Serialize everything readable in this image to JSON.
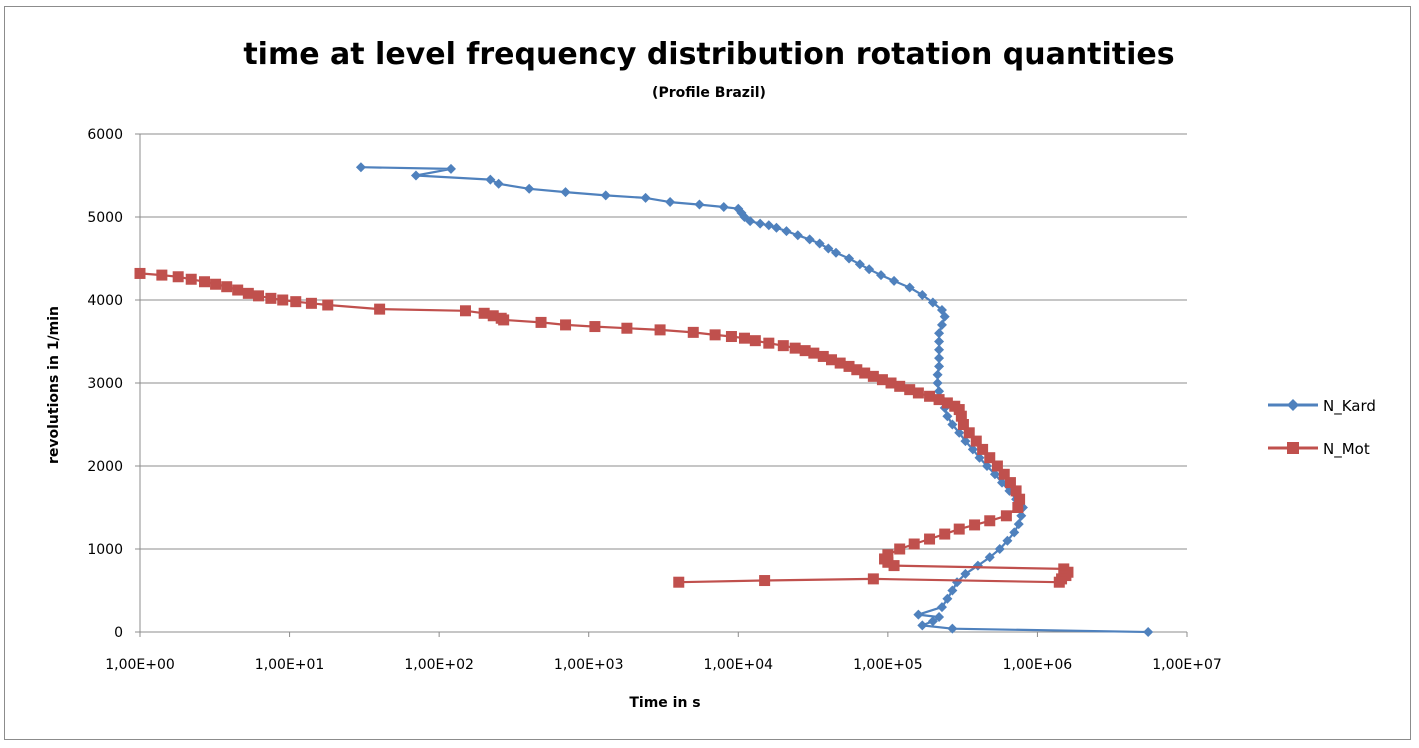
{
  "chart_data": {
    "type": "line",
    "title": "time at level frequency distribution rotation quantities",
    "subtitle": "(Profile Brazil)",
    "xlabel": "Time in s",
    "ylabel": "revolutions in 1/min",
    "x_scale": "log",
    "xlim": [
      1,
      10000000
    ],
    "ylim": [
      0,
      6000
    ],
    "x_ticks": [
      1,
      10,
      100,
      1000,
      10000,
      100000,
      1000000,
      10000000
    ],
    "x_tick_labels": [
      "1,00E+00",
      "1,00E+01",
      "1,00E+02",
      "1,00E+03",
      "1,00E+04",
      "1,00E+05",
      "1,00E+06",
      "1,00E+07"
    ],
    "y_ticks": [
      0,
      1000,
      2000,
      3000,
      4000,
      5000,
      6000
    ],
    "y_tick_labels": [
      "0",
      "1000",
      "2000",
      "3000",
      "4000",
      "5000",
      "6000"
    ],
    "grid": "horizontal",
    "legend_position": "right",
    "series": [
      {
        "name": "N_Kard",
        "color": "#4f81bd",
        "marker": "diamond",
        "points": [
          [
            30,
            5600
          ],
          [
            120,
            5580
          ],
          [
            70,
            5500
          ],
          [
            220,
            5450
          ],
          [
            250,
            5400
          ],
          [
            400,
            5340
          ],
          [
            700,
            5300
          ],
          [
            1300,
            5260
          ],
          [
            2400,
            5230
          ],
          [
            3500,
            5180
          ],
          [
            5500,
            5150
          ],
          [
            8000,
            5120
          ],
          [
            10000,
            5100
          ],
          [
            10500,
            5050
          ],
          [
            11000,
            5000
          ],
          [
            12000,
            4950
          ],
          [
            14000,
            4920
          ],
          [
            16000,
            4900
          ],
          [
            18000,
            4870
          ],
          [
            21000,
            4830
          ],
          [
            25000,
            4780
          ],
          [
            30000,
            4730
          ],
          [
            35000,
            4680
          ],
          [
            40000,
            4620
          ],
          [
            45000,
            4570
          ],
          [
            55000,
            4500
          ],
          [
            65000,
            4430
          ],
          [
            75000,
            4370
          ],
          [
            90000,
            4300
          ],
          [
            110000,
            4230
          ],
          [
            140000,
            4150
          ],
          [
            170000,
            4060
          ],
          [
            200000,
            3970
          ],
          [
            230000,
            3880
          ],
          [
            240000,
            3800
          ],
          [
            230000,
            3700
          ],
          [
            220000,
            3600
          ],
          [
            220000,
            3500
          ],
          [
            220000,
            3400
          ],
          [
            220000,
            3300
          ],
          [
            220000,
            3200
          ],
          [
            215000,
            3100
          ],
          [
            215000,
            3000
          ],
          [
            220000,
            2900
          ],
          [
            230000,
            2800
          ],
          [
            240000,
            2700
          ],
          [
            250000,
            2600
          ],
          [
            270000,
            2500
          ],
          [
            300000,
            2400
          ],
          [
            330000,
            2300
          ],
          [
            370000,
            2200
          ],
          [
            410000,
            2100
          ],
          [
            460000,
            2000
          ],
          [
            520000,
            1900
          ],
          [
            580000,
            1800
          ],
          [
            650000,
            1700
          ],
          [
            720000,
            1600
          ],
          [
            800000,
            1500
          ],
          [
            780000,
            1400
          ],
          [
            750000,
            1300
          ],
          [
            700000,
            1200
          ],
          [
            630000,
            1100
          ],
          [
            560000,
            1000
          ],
          [
            480000,
            900
          ],
          [
            400000,
            800
          ],
          [
            330000,
            700
          ],
          [
            290000,
            600
          ],
          [
            270000,
            500
          ],
          [
            250000,
            400
          ],
          [
            230000,
            300
          ],
          [
            160000,
            210
          ],
          [
            220000,
            180
          ],
          [
            200000,
            130
          ],
          [
            170000,
            80
          ],
          [
            270000,
            40
          ],
          [
            5500000,
            0
          ]
        ]
      },
      {
        "name": "N_Mot",
        "color": "#c0504d",
        "marker": "square",
        "points": [
          [
            1,
            4320
          ],
          [
            1.4,
            4300
          ],
          [
            1.8,
            4280
          ],
          [
            2.2,
            4250
          ],
          [
            2.7,
            4220
          ],
          [
            3.2,
            4190
          ],
          [
            3.8,
            4160
          ],
          [
            4.5,
            4120
          ],
          [
            5.3,
            4080
          ],
          [
            6.2,
            4050
          ],
          [
            7.5,
            4020
          ],
          [
            9,
            4000
          ],
          [
            11,
            3980
          ],
          [
            14,
            3960
          ],
          [
            18,
            3940
          ],
          [
            40,
            3890
          ],
          [
            150,
            3870
          ],
          [
            200,
            3840
          ],
          [
            230,
            3810
          ],
          [
            260,
            3780
          ],
          [
            270,
            3760
          ],
          [
            480,
            3730
          ],
          [
            700,
            3700
          ],
          [
            1100,
            3680
          ],
          [
            1800,
            3660
          ],
          [
            3000,
            3640
          ],
          [
            5000,
            3610
          ],
          [
            7000,
            3580
          ],
          [
            9000,
            3560
          ],
          [
            11000,
            3540
          ],
          [
            13000,
            3510
          ],
          [
            16000,
            3480
          ],
          [
            20000,
            3450
          ],
          [
            24000,
            3420
          ],
          [
            28000,
            3390
          ],
          [
            32000,
            3360
          ],
          [
            37000,
            3320
          ],
          [
            42000,
            3280
          ],
          [
            48000,
            3240
          ],
          [
            55000,
            3200
          ],
          [
            62000,
            3160
          ],
          [
            70000,
            3120
          ],
          [
            80000,
            3080
          ],
          [
            92000,
            3040
          ],
          [
            105000,
            3000
          ],
          [
            120000,
            2960
          ],
          [
            140000,
            2920
          ],
          [
            160000,
            2880
          ],
          [
            190000,
            2840
          ],
          [
            220000,
            2800
          ],
          [
            250000,
            2760
          ],
          [
            280000,
            2720
          ],
          [
            300000,
            2680
          ],
          [
            310000,
            2600
          ],
          [
            320000,
            2500
          ],
          [
            350000,
            2400
          ],
          [
            390000,
            2300
          ],
          [
            430000,
            2200
          ],
          [
            480000,
            2100
          ],
          [
            540000,
            2000
          ],
          [
            600000,
            1900
          ],
          [
            660000,
            1800
          ],
          [
            720000,
            1700
          ],
          [
            760000,
            1600
          ],
          [
            740000,
            1500
          ],
          [
            620000,
            1400
          ],
          [
            480000,
            1340
          ],
          [
            380000,
            1290
          ],
          [
            300000,
            1240
          ],
          [
            240000,
            1180
          ],
          [
            190000,
            1120
          ],
          [
            150000,
            1060
          ],
          [
            120000,
            1000
          ],
          [
            100000,
            930
          ],
          [
            95000,
            880
          ],
          [
            100000,
            840
          ],
          [
            110000,
            800
          ],
          [
            1500000,
            760
          ],
          [
            1600000,
            720
          ],
          [
            1550000,
            680
          ],
          [
            1450000,
            640
          ],
          [
            1400000,
            600
          ],
          [
            80000,
            640
          ],
          [
            15000,
            620
          ],
          [
            4000,
            600
          ]
        ]
      }
    ]
  }
}
